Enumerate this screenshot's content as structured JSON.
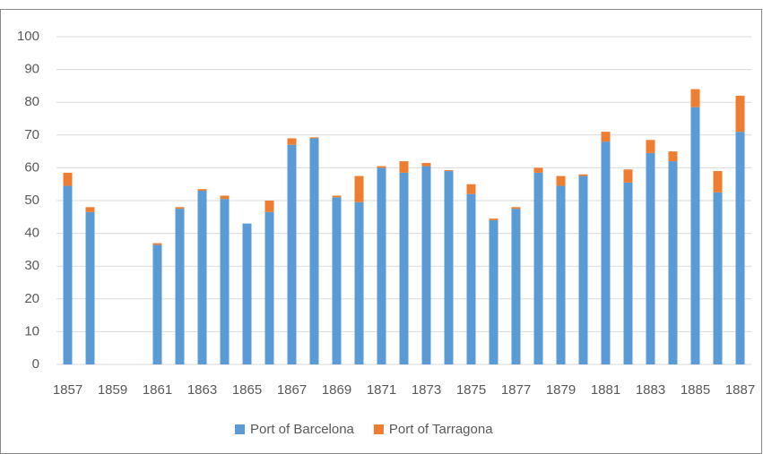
{
  "chart_data": {
    "type": "stacked-bar",
    "categories": [
      "1857",
      null,
      "1859",
      null,
      "1861",
      null,
      "1863",
      null,
      "1865",
      null,
      "1867",
      null,
      "1869",
      null,
      "1871",
      null,
      "1873",
      null,
      "1875",
      null,
      "1877",
      null,
      "1879",
      null,
      "1881",
      null,
      "1883",
      null,
      "1885",
      null,
      "1887"
    ],
    "series": [
      {
        "name": "Port of Barcelona",
        "color": "#5b9bd5",
        "values": [
          54.5,
          46.5,
          null,
          null,
          36.5,
          47.5,
          53,
          50.5,
          43,
          46.5,
          67,
          69,
          51,
          49.5,
          60,
          58.5,
          60.5,
          59,
          52,
          44,
          47.5,
          58.5,
          54.5,
          57.5,
          68,
          55.5,
          64.5,
          62,
          78.5,
          52.5,
          71
        ]
      },
      {
        "name": "Port of Tarragona",
        "color": "#ed7d31",
        "values": [
          4,
          1.5,
          null,
          null,
          0.5,
          0.5,
          0.5,
          1,
          0,
          3.5,
          2,
          0.3,
          0.5,
          8,
          0.5,
          3.5,
          1,
          0.3,
          3,
          0.5,
          0.5,
          1.5,
          3,
          0.5,
          3,
          4,
          4,
          3,
          5.5,
          6.5,
          11
        ]
      }
    ],
    "ylim": [
      0,
      100
    ],
    "yticks": [
      0,
      10,
      20,
      30,
      40,
      50,
      60,
      70,
      80,
      90,
      100
    ],
    "grid": true,
    "legend": "bottom"
  }
}
